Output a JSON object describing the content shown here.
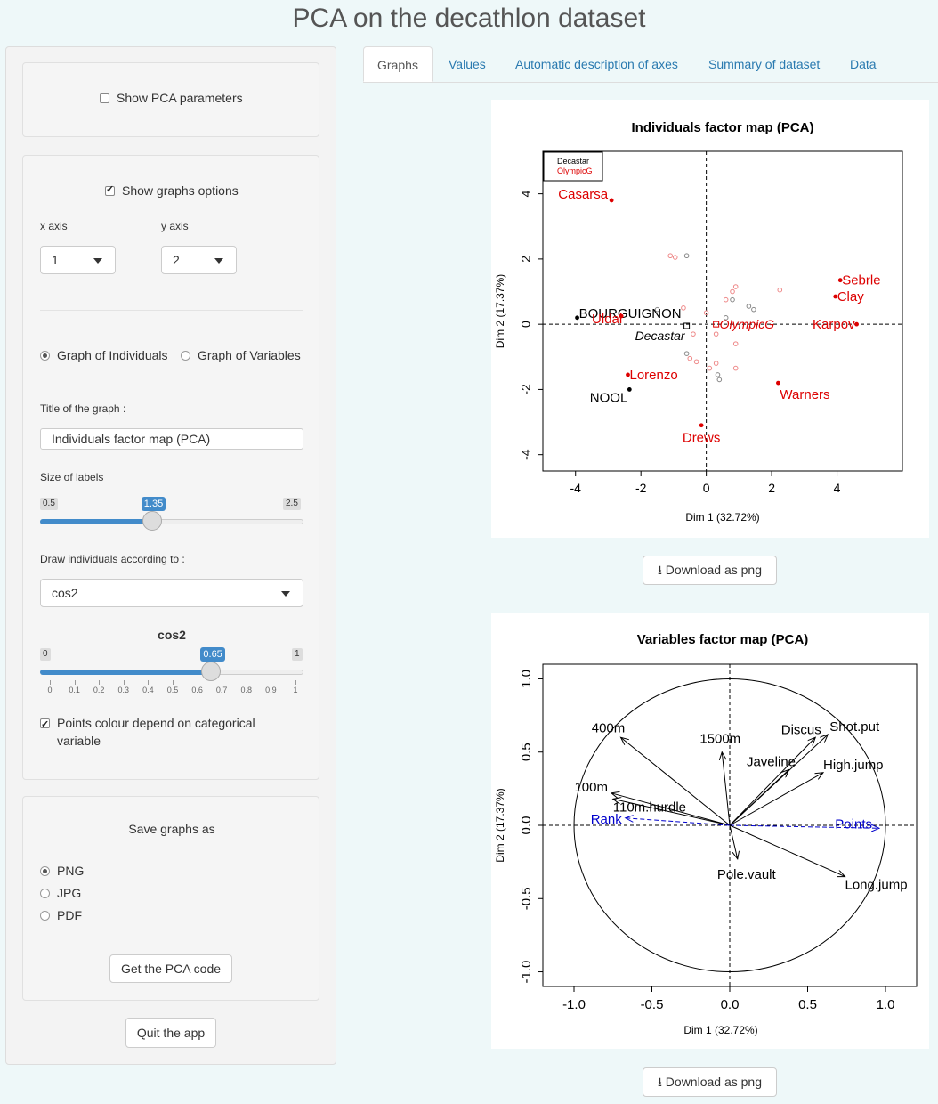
{
  "app_title": "PCA on the decathlon dataset",
  "tabs": [
    "Graphs",
    "Values",
    "Automatic description of axes",
    "Summary of dataset",
    "Data"
  ],
  "sidebar": {
    "show_pca_params": "Show PCA parameters",
    "show_graphs_options": "Show graphs options",
    "x_axis_label": "x axis",
    "y_axis_label": "y axis",
    "x_axis_value": "1",
    "y_axis_value": "2",
    "graph_individuals": "Graph of Individuals",
    "graph_variables": "Graph of Variables",
    "title_label": "Title of the graph :",
    "title_value": "Individuals factor map (PCA)",
    "size_labels": "Size of labels",
    "size_min": "0.5",
    "size_max": "2.5",
    "size_value": "1.35",
    "size_value_num": 1.35,
    "draw_according": "Draw individuals according to :",
    "draw_value": "cos2",
    "cos2_label": "cos2",
    "cos2_min": "0",
    "cos2_max": "1",
    "cos2_value": "0.65",
    "cos2_value_num": 0.65,
    "cos2_ticks": [
      "0",
      "0.1",
      "0.2",
      "0.3",
      "0.4",
      "0.5",
      "0.6",
      "0.7",
      "0.8",
      "0.9",
      "1"
    ],
    "points_colour": "Points colour depend on categorical",
    "points_colour_2": "variable",
    "save_as": "Save graphs as",
    "formats": [
      "PNG",
      "JPG",
      "PDF"
    ],
    "get_code": "Get the PCA code",
    "quit": "Quit the app"
  },
  "download_label": "Download as png",
  "chart_data": [
    {
      "type": "scatter",
      "title": "Individuals factor map (PCA)",
      "xlabel": "Dim 1 (32.72%)",
      "ylabel": "Dim 2 (17.37%)",
      "xlim": [
        -5,
        6
      ],
      "ylim": [
        -4.5,
        5.3
      ],
      "xticks": [
        -4,
        -2,
        0,
        2,
        4
      ],
      "yticks": [
        -4,
        -2,
        0,
        2,
        4
      ],
      "legend": [
        {
          "name": "Decastar",
          "color": "#000000"
        },
        {
          "name": "OlympicG",
          "color": "#dd0000"
        }
      ],
      "labeled_points": [
        {
          "label": "Casarsa",
          "x": -2.9,
          "y": 3.8,
          "color": "#dd0000"
        },
        {
          "label": "Sebrle",
          "x": 4.1,
          "y": 1.35,
          "color": "#dd0000"
        },
        {
          "label": "Clay",
          "x": 3.95,
          "y": 0.85,
          "color": "#dd0000"
        },
        {
          "label": "Karpov",
          "x": 4.6,
          "y": 0.0,
          "color": "#dd0000"
        },
        {
          "label": "BOURGUIGNON",
          "x": -3.95,
          "y": 0.2,
          "color": "#000000"
        },
        {
          "label": "Uldal",
          "x": -2.6,
          "y": 0.25,
          "color": "#dd0000"
        },
        {
          "label": "Lorenzo",
          "x": -2.4,
          "y": -1.55,
          "color": "#dd0000"
        },
        {
          "label": "NOOL",
          "x": -2.35,
          "y": -2.0,
          "color": "#000000"
        },
        {
          "label": "Warners",
          "x": 2.2,
          "y": -1.8,
          "color": "#dd0000"
        },
        {
          "label": "Drews",
          "x": -0.15,
          "y": -3.1,
          "color": "#dd0000"
        }
      ],
      "centroids": [
        {
          "label": "Decastar",
          "x": -0.6,
          "y": -0.05,
          "color": "#000000"
        },
        {
          "label": "OlympicG",
          "x": 0.3,
          "y": 0.0,
          "color": "#dd0000"
        }
      ],
      "faint_points": [
        {
          "x": -1.1,
          "y": 2.1,
          "color": "#ee8888"
        },
        {
          "x": -0.95,
          "y": 2.05,
          "color": "#ee8888"
        },
        {
          "x": -0.6,
          "y": 2.1,
          "color": "#888888"
        },
        {
          "x": 0.9,
          "y": 1.15,
          "color": "#ee8888"
        },
        {
          "x": 0.8,
          "y": 1.0,
          "color": "#ee8888"
        },
        {
          "x": 2.25,
          "y": 1.05,
          "color": "#ee8888"
        },
        {
          "x": 0.6,
          "y": 0.75,
          "color": "#ee8888"
        },
        {
          "x": 0.8,
          "y": 0.75,
          "color": "#888888"
        },
        {
          "x": 1.3,
          "y": 0.55,
          "color": "#888888"
        },
        {
          "x": 1.45,
          "y": 0.45,
          "color": "#888888"
        },
        {
          "x": -0.7,
          "y": 0.5,
          "color": "#ee8888"
        },
        {
          "x": -1.5,
          "y": 0.45,
          "color": "#888888"
        },
        {
          "x": 0.0,
          "y": 0.35,
          "color": "#ee8888"
        },
        {
          "x": 0.6,
          "y": 0.2,
          "color": "#888888"
        },
        {
          "x": -0.4,
          "y": -0.3,
          "color": "#ee8888"
        },
        {
          "x": 0.3,
          "y": -0.3,
          "color": "#ee8888"
        },
        {
          "x": 0.9,
          "y": -0.6,
          "color": "#ee8888"
        },
        {
          "x": -0.6,
          "y": -0.9,
          "color": "#888888"
        },
        {
          "x": -0.3,
          "y": -1.15,
          "color": "#ee8888"
        },
        {
          "x": -0.5,
          "y": -1.05,
          "color": "#ee8888"
        },
        {
          "x": 0.3,
          "y": -1.2,
          "color": "#ee8888"
        },
        {
          "x": 0.35,
          "y": -1.55,
          "color": "#888888"
        },
        {
          "x": 0.4,
          "y": -1.7,
          "color": "#888888"
        },
        {
          "x": 0.9,
          "y": -1.35,
          "color": "#ee8888"
        },
        {
          "x": 0.1,
          "y": -1.35,
          "color": "#ee8888"
        }
      ]
    },
    {
      "type": "arrows",
      "title": "Variables factor map (PCA)",
      "xlabel": "Dim 1 (32.72%)",
      "ylabel": "Dim 2 (17.37%)",
      "xlim": [
        -1.2,
        1.2
      ],
      "ylim": [
        -1.1,
        1.1
      ],
      "xticks": [
        "-1.0",
        "-0.5",
        "0.0",
        "0.5",
        "1.0"
      ],
      "yticks": [
        "-1.0",
        "-0.5",
        "0.0",
        "0.5",
        "1.0"
      ],
      "variables": [
        {
          "name": "400m",
          "x": -0.7,
          "y": 0.6,
          "color": "#000000",
          "dashed": false
        },
        {
          "name": "1500m",
          "x": -0.05,
          "y": 0.5,
          "color": "#000000",
          "dashed": false
        },
        {
          "name": "Discus",
          "x": 0.55,
          "y": 0.6,
          "color": "#000000",
          "dashed": false
        },
        {
          "name": "Shot.put",
          "x": 0.63,
          "y": 0.62,
          "color": "#000000",
          "dashed": false
        },
        {
          "name": "Javeline",
          "x": 0.38,
          "y": 0.38,
          "color": "#000000",
          "dashed": false
        },
        {
          "name": "High.jump",
          "x": 0.6,
          "y": 0.36,
          "color": "#000000",
          "dashed": false
        },
        {
          "name": "100m",
          "x": -0.76,
          "y": 0.22,
          "color": "#000000",
          "dashed": false
        },
        {
          "name": "110m.hurdle",
          "x": -0.75,
          "y": 0.18,
          "color": "#000000",
          "dashed": false
        },
        {
          "name": "Rank",
          "x": -0.67,
          "y": 0.05,
          "color": "#0000cc",
          "dashed": true
        },
        {
          "name": "Points",
          "x": 0.96,
          "y": -0.02,
          "color": "#0000cc",
          "dashed": true
        },
        {
          "name": "Pole.vault",
          "x": 0.05,
          "y": -0.23,
          "color": "#000000",
          "dashed": false
        },
        {
          "name": "Long.jump",
          "x": 0.74,
          "y": -0.35,
          "color": "#000000",
          "dashed": false
        }
      ]
    }
  ]
}
